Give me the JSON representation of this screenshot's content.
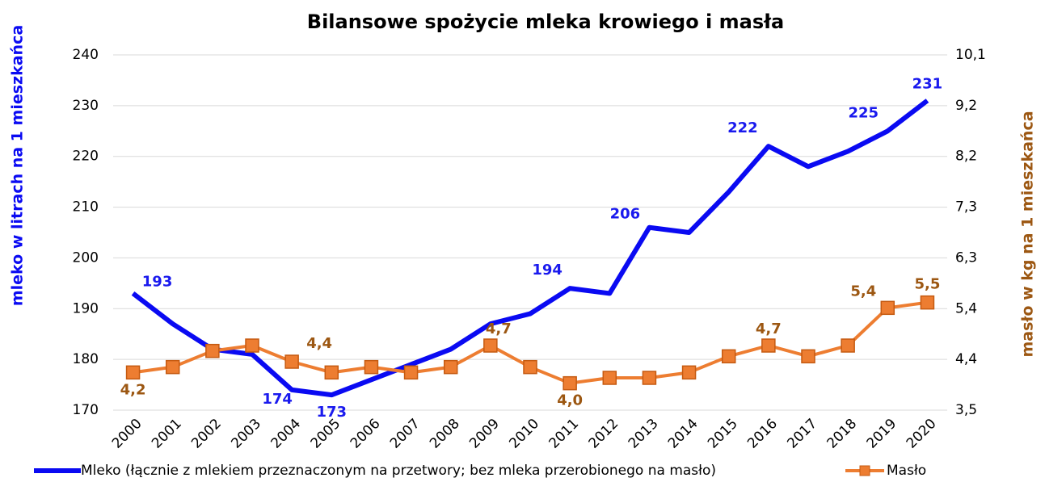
{
  "chart_data": {
    "type": "line",
    "title": "Bilansowe spożycie mleka krowiego i masła",
    "y_label": "mleko w litrach na 1 mieszkańca",
    "y2_label": "masło w kg na 1 mieszkańca",
    "categories": [
      "2000",
      "2001",
      "2002",
      "2003",
      "2004",
      "2005",
      "2006",
      "2007",
      "2008",
      "2009",
      "2010",
      "2011",
      "2012",
      "2013",
      "2014",
      "2015",
      "2016",
      "2017",
      "2018",
      "2019",
      "2020"
    ],
    "series": [
      {
        "name": "Mleko (łącznie z mlekiem przeznaczonym na przetwory; bez mleka przerobionego na masło)",
        "color": "#0a0af2",
        "values": [
          193,
          187,
          182,
          181,
          174,
          173,
          176,
          179,
          182,
          187,
          189,
          194,
          193,
          206,
          205,
          213,
          222,
          218,
          221,
          225,
          231
        ],
        "value_labels": [
          "193",
          null,
          null,
          null,
          "174",
          "173",
          null,
          null,
          null,
          null,
          null,
          "194",
          null,
          "206",
          null,
          null,
          "222",
          null,
          null,
          "225",
          "231"
        ]
      },
      {
        "name": "Masło",
        "color": "#ed7d31",
        "axis": "y2",
        "values": [
          4.2,
          4.3,
          4.6,
          4.7,
          4.4,
          4.2,
          4.3,
          4.2,
          4.3,
          4.7,
          4.3,
          4.0,
          4.1,
          4.1,
          4.2,
          4.5,
          4.7,
          4.5,
          4.7,
          5.4,
          5.5
        ],
        "value_labels": [
          "4,2",
          null,
          null,
          null,
          "4,4",
          null,
          null,
          null,
          null,
          "4,7",
          null,
          "4,0",
          null,
          null,
          null,
          null,
          "4,7",
          null,
          null,
          "5,4",
          "5,5"
        ]
      }
    ],
    "ylim": [
      170,
      240
    ],
    "yticks": [
      170,
      180,
      190,
      200,
      210,
      220,
      230,
      240
    ],
    "y2lim": [
      3.5,
      10.1
    ],
    "y2ticks": [
      {
        "value": 3.5,
        "label": "3,5"
      },
      {
        "value": 4.443,
        "label": "4,4"
      },
      {
        "value": 5.386,
        "label": "5,4"
      },
      {
        "value": 6.329,
        "label": "6,3"
      },
      {
        "value": 7.271,
        "label": "7,3"
      },
      {
        "value": 8.214,
        "label": "8,2"
      },
      {
        "value": 9.157,
        "label": "9,2"
      },
      {
        "value": 10.1,
        "label": "10,1"
      }
    ],
    "grid": true,
    "legend": "bottom"
  }
}
